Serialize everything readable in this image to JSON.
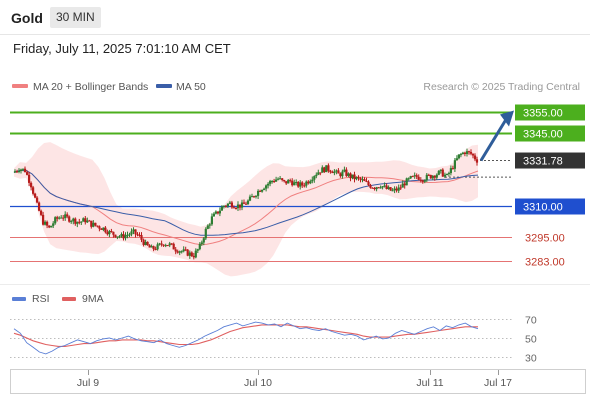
{
  "header": {
    "symbol": "Gold",
    "timeframe": "30 MIN"
  },
  "datetime": "Friday, July 11, 2025 7:01:10 AM CET",
  "legend": {
    "ma20": "MA 20 + Bollinger Bands",
    "ma50": "MA 50",
    "credit": "Research © 2025 Trading Central"
  },
  "colors": {
    "ma20": "#f08080",
    "ma50": "#3a5ea8",
    "resistance": "#4caf1e",
    "support": "#1f4fcf",
    "minor": "#e57373",
    "candle_up": "#2e7d32",
    "candle_down": "#b71c1c",
    "band": "#fde0e0",
    "arrow": "#2f5d9a",
    "last_price_bg": "#333333",
    "rsi": "#5a7fd6",
    "rsi_ma": "#e06060"
  },
  "chart_data": [
    {
      "type": "candlestick",
      "title": "",
      "xlabel": "",
      "ylabel": "",
      "ylim": [
        3275,
        3362
      ],
      "x_ticks": [
        "Jul 9",
        "Jul 10",
        "Jul 11",
        "Jul 17"
      ],
      "last_price": 3331.78,
      "levels": [
        {
          "name": "resistance-2",
          "value": 3355.0,
          "label": "3355.00",
          "kind": "resistance"
        },
        {
          "name": "resistance-1",
          "value": 3345.0,
          "label": "3345.00",
          "kind": "resistance"
        },
        {
          "name": "pivot",
          "value": 3310.0,
          "label": "3310.00",
          "kind": "pivot"
        },
        {
          "name": "support-1",
          "value": 3295.0,
          "label": "3295.00",
          "kind": "support"
        },
        {
          "name": "support-2",
          "value": 3283.0,
          "label": "3283.00",
          "kind": "support"
        }
      ],
      "close_path": [
        3326,
        3328,
        3327,
        3320,
        3310,
        3302,
        3299,
        3303,
        3305,
        3304,
        3303,
        3302,
        3303,
        3301,
        3300,
        3299,
        3297,
        3296,
        3295,
        3296,
        3297,
        3295,
        3291,
        3289,
        3290,
        3292,
        3291,
        3289,
        3288,
        3287,
        3286,
        3290,
        3298,
        3304,
        3307,
        3310,
        3311,
        3310,
        3310,
        3312,
        3315,
        3318,
        3320,
        3322,
        3323,
        3321,
        3322,
        3320,
        3320,
        3322,
        3325,
        3327,
        3328,
        3327,
        3325,
        3326,
        3324,
        3323,
        3322,
        3320,
        3319,
        3320,
        3318,
        3317,
        3318,
        3321,
        3323,
        3324,
        3323,
        3324,
        3325,
        3326,
        3324,
        3329,
        3334,
        3336,
        3335,
        3332
      ],
      "projection": {
        "from": 3331.78,
        "to": 3355.0
      }
    },
    {
      "type": "line",
      "title": "",
      "legend": [
        "RSI",
        "9MA"
      ],
      "ylim": [
        20,
        80
      ],
      "y_ticks": [
        70,
        50,
        30
      ],
      "rsi": [
        60,
        55,
        45,
        40,
        35,
        33,
        36,
        40,
        42,
        45,
        48,
        46,
        44,
        47,
        49,
        50,
        48,
        50,
        52,
        49,
        47,
        46,
        45,
        48,
        44,
        42,
        40,
        42,
        45,
        48,
        52,
        55,
        58,
        62,
        64,
        66,
        63,
        65,
        67,
        66,
        64,
        65,
        62,
        66,
        63,
        60,
        61,
        59,
        58,
        60,
        57,
        55,
        53,
        54,
        52,
        48,
        50,
        52,
        49,
        50,
        55,
        58,
        56,
        54,
        57,
        60,
        62,
        58,
        63,
        61,
        64,
        66,
        62,
        60
      ],
      "ma": [
        55,
        53,
        50,
        47,
        45,
        43,
        42,
        41,
        41,
        42,
        43,
        44,
        44,
        45,
        46,
        47,
        47,
        48,
        48,
        48,
        48,
        47,
        47,
        46,
        45,
        44,
        43,
        43,
        43,
        44,
        46,
        48,
        51,
        54,
        57,
        59,
        61,
        62,
        63,
        64,
        64,
        64,
        64,
        64,
        63,
        62,
        62,
        61,
        60,
        59,
        58,
        57,
        56,
        55,
        54,
        52,
        51,
        51,
        51,
        51,
        52,
        53,
        54,
        54,
        55,
        56,
        57,
        58,
        59,
        60,
        61,
        62,
        62,
        62
      ]
    }
  ]
}
